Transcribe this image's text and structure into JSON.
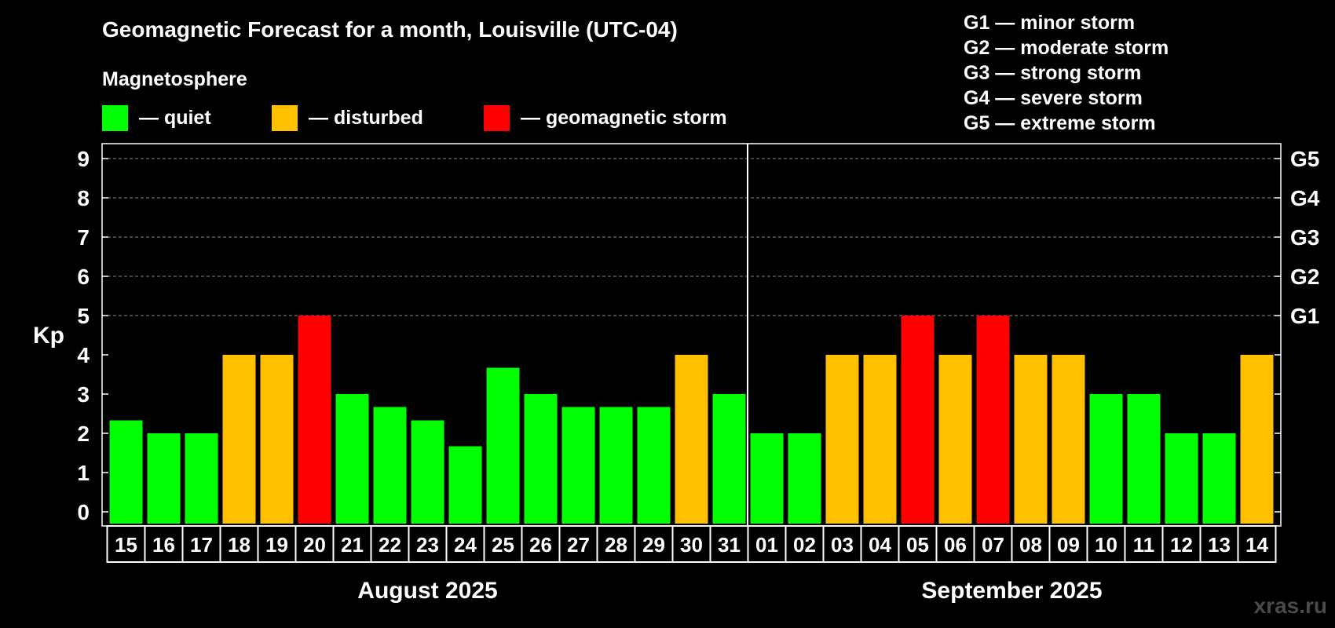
{
  "title": "Geomagnetic Forecast for a month, Louisville (UTC-04)",
  "legend": {
    "heading": "Magnetosphere",
    "items": [
      {
        "label": "— quiet",
        "color": "#00ff00"
      },
      {
        "label": "— disturbed",
        "color": "#ffc000"
      },
      {
        "label": "— geomagnetic storm",
        "color": "#ff0000"
      }
    ]
  },
  "storm_scale": [
    "G1 — minor storm",
    "G2 — moderate storm",
    "G3 — strong storm",
    "G4 — severe storm",
    "G5 — extreme storm"
  ],
  "watermark": "xras.ru",
  "chart_data": {
    "type": "bar",
    "ylabel": "Kp",
    "ylim": [
      0,
      9
    ],
    "yticks": [
      "0",
      "1",
      "2",
      "3",
      "4",
      "5",
      "6",
      "7",
      "8",
      "9"
    ],
    "right_axis_labels": [
      {
        "value": 5,
        "label": "G1"
      },
      {
        "value": 6,
        "label": "G2"
      },
      {
        "value": 7,
        "label": "G3"
      },
      {
        "value": 8,
        "label": "G4"
      },
      {
        "value": 9,
        "label": "G5"
      }
    ],
    "grid_lines_at": [
      5,
      6,
      7,
      8,
      9
    ],
    "months": [
      {
        "label": "August 2025",
        "first_index": 0,
        "last_index": 16
      },
      {
        "label": "September 2025",
        "first_index": 17,
        "last_index": 30
      }
    ],
    "month_divider_after_index": 16,
    "categories": [
      "15",
      "16",
      "17",
      "18",
      "19",
      "20",
      "21",
      "22",
      "23",
      "24",
      "25",
      "26",
      "27",
      "28",
      "29",
      "30",
      "31",
      "01",
      "02",
      "03",
      "04",
      "05",
      "06",
      "07",
      "08",
      "09",
      "10",
      "11",
      "12",
      "13",
      "14"
    ],
    "values": [
      2.33,
      2,
      2,
      4,
      4,
      5,
      3,
      2.67,
      2.33,
      1.67,
      3.67,
      3,
      2.67,
      2.67,
      2.67,
      4,
      3,
      2,
      2,
      4,
      4,
      5,
      4,
      5,
      4,
      4,
      3,
      3,
      2,
      2,
      4
    ],
    "status": [
      "quiet",
      "quiet",
      "quiet",
      "disturbed",
      "disturbed",
      "storm",
      "quiet",
      "quiet",
      "quiet",
      "quiet",
      "quiet",
      "quiet",
      "quiet",
      "quiet",
      "quiet",
      "disturbed",
      "quiet",
      "quiet",
      "quiet",
      "disturbed",
      "disturbed",
      "storm",
      "disturbed",
      "storm",
      "disturbed",
      "disturbed",
      "quiet",
      "quiet",
      "quiet",
      "quiet",
      "disturbed"
    ],
    "colors": {
      "quiet": "#00ff00",
      "disturbed": "#ffc000",
      "storm": "#ff0000"
    }
  }
}
